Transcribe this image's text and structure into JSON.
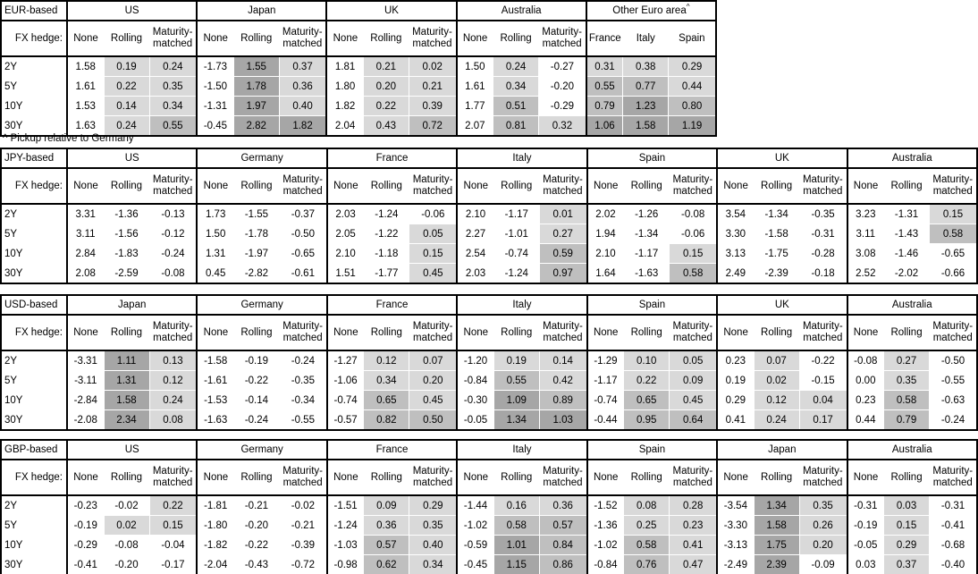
{
  "colors": {
    "background": "#ffffff",
    "border": "#000000",
    "cell_light": "#d9d9d9",
    "cell_medium": "#bfbfbf",
    "cell_dark": "#a6a6a6"
  },
  "heatmap_rule": {
    "negative_values": "white",
    "bins": [
      {
        "min": 0.0,
        "max": 0.5,
        "color": "cell_light"
      },
      {
        "min": 0.5,
        "max": 1.0,
        "color": "cell_medium"
      },
      {
        "min": 1.0,
        "max": 99,
        "color": "cell_dark"
      }
    ]
  },
  "labels": {
    "fx_hedge": "FX hedge:",
    "tenors": [
      "2Y",
      "5Y",
      "10Y",
      "30Y"
    ],
    "footnote": "^ Pickup relative to Germany"
  },
  "tables": [
    {
      "id": "eur",
      "base_label": "EUR-based",
      "blocks": [
        {
          "country": "US",
          "columns": [
            "None",
            "Rolling",
            "Maturity-matched"
          ],
          "shaded_cols": [
            false,
            true,
            true
          ],
          "rows": [
            [
              "1.58",
              "0.19",
              "0.24"
            ],
            [
              "1.61",
              "0.22",
              "0.35"
            ],
            [
              "1.53",
              "0.14",
              "0.34"
            ],
            [
              "1.63",
              "0.24",
              "0.55"
            ]
          ]
        },
        {
          "country": "Japan",
          "columns": [
            "None",
            "Rolling",
            "Maturity-matched"
          ],
          "shaded_cols": [
            false,
            true,
            true
          ],
          "rows": [
            [
              "-1.73",
              "1.55",
              "0.37"
            ],
            [
              "-1.50",
              "1.78",
              "0.36"
            ],
            [
              "-1.31",
              "1.97",
              "0.40"
            ],
            [
              "-0.45",
              "2.82",
              "1.82"
            ]
          ]
        },
        {
          "country": "UK",
          "columns": [
            "None",
            "Rolling",
            "Maturity-matched"
          ],
          "shaded_cols": [
            false,
            true,
            true
          ],
          "rows": [
            [
              "1.81",
              "0.21",
              "0.02"
            ],
            [
              "1.80",
              "0.20",
              "0.21"
            ],
            [
              "1.82",
              "0.22",
              "0.39"
            ],
            [
              "2.04",
              "0.43",
              "0.72"
            ]
          ]
        },
        {
          "country": "Australia",
          "columns": [
            "None",
            "Rolling",
            "Maturity-matched"
          ],
          "shaded_cols": [
            false,
            true,
            true
          ],
          "rows": [
            [
              "1.50",
              "0.24",
              "-0.27"
            ],
            [
              "1.61",
              "0.34",
              "-0.20"
            ],
            [
              "1.77",
              "0.51",
              "-0.29"
            ],
            [
              "2.07",
              "0.81",
              "0.32"
            ]
          ]
        },
        {
          "country": "Other Euro area",
          "superscript": "^",
          "columns": [
            "France",
            "Italy",
            "Spain"
          ],
          "shaded_cols": [
            true,
            true,
            true
          ],
          "rows": [
            [
              "0.31",
              "0.38",
              "0.29"
            ],
            [
              "0.55",
              "0.77",
              "0.44"
            ],
            [
              "0.79",
              "1.23",
              "0.80"
            ],
            [
              "1.06",
              "1.58",
              "1.19"
            ]
          ]
        }
      ]
    },
    {
      "id": "jpy",
      "base_label": "JPY-based",
      "blocks": [
        {
          "country": "US",
          "columns": [
            "None",
            "Rolling",
            "Maturity-matched"
          ],
          "shaded_cols": [
            false,
            true,
            true
          ],
          "rows": [
            [
              "3.31",
              "-1.36",
              "-0.13"
            ],
            [
              "3.11",
              "-1.56",
              "-0.12"
            ],
            [
              "2.84",
              "-1.83",
              "-0.24"
            ],
            [
              "2.08",
              "-2.59",
              "-0.08"
            ]
          ]
        },
        {
          "country": "Germany",
          "columns": [
            "None",
            "Rolling",
            "Maturity-matched"
          ],
          "shaded_cols": [
            false,
            true,
            true
          ],
          "rows": [
            [
              "1.73",
              "-1.55",
              "-0.37"
            ],
            [
              "1.50",
              "-1.78",
              "-0.50"
            ],
            [
              "1.31",
              "-1.97",
              "-0.65"
            ],
            [
              "0.45",
              "-2.82",
              "-0.61"
            ]
          ]
        },
        {
          "country": "France",
          "columns": [
            "None",
            "Rolling",
            "Maturity-matched"
          ],
          "shaded_cols": [
            false,
            true,
            true
          ],
          "rows": [
            [
              "2.03",
              "-1.24",
              "-0.06"
            ],
            [
              "2.05",
              "-1.22",
              "0.05"
            ],
            [
              "2.10",
              "-1.18",
              "0.15"
            ],
            [
              "1.51",
              "-1.77",
              "0.45"
            ]
          ]
        },
        {
          "country": "Italy",
          "columns": [
            "None",
            "Rolling",
            "Maturity-matched"
          ],
          "shaded_cols": [
            false,
            true,
            true
          ],
          "rows": [
            [
              "2.10",
              "-1.17",
              "0.01"
            ],
            [
              "2.27",
              "-1.01",
              "0.27"
            ],
            [
              "2.54",
              "-0.74",
              "0.59"
            ],
            [
              "2.03",
              "-1.24",
              "0.97"
            ]
          ]
        },
        {
          "country": "Spain",
          "columns": [
            "None",
            "Rolling",
            "Maturity-matched"
          ],
          "shaded_cols": [
            false,
            true,
            true
          ],
          "rows": [
            [
              "2.02",
              "-1.26",
              "-0.08"
            ],
            [
              "1.94",
              "-1.34",
              "-0.06"
            ],
            [
              "2.10",
              "-1.17",
              "0.15"
            ],
            [
              "1.64",
              "-1.63",
              "0.58"
            ]
          ]
        },
        {
          "country": "UK",
          "columns": [
            "None",
            "Rolling",
            "Maturity-matched"
          ],
          "shaded_cols": [
            false,
            true,
            true
          ],
          "rows": [
            [
              "3.54",
              "-1.34",
              "-0.35"
            ],
            [
              "3.30",
              "-1.58",
              "-0.31"
            ],
            [
              "3.13",
              "-1.75",
              "-0.28"
            ],
            [
              "2.49",
              "-2.39",
              "-0.18"
            ]
          ]
        },
        {
          "country": "Australia",
          "columns": [
            "None",
            "Rolling",
            "Maturity-matched"
          ],
          "shaded_cols": [
            false,
            true,
            true
          ],
          "rows": [
            [
              "3.23",
              "-1.31",
              "0.15"
            ],
            [
              "3.11",
              "-1.43",
              "0.58"
            ],
            [
              "3.08",
              "-1.46",
              "-0.65"
            ],
            [
              "2.52",
              "-2.02",
              "-0.66"
            ]
          ]
        }
      ]
    },
    {
      "id": "usd",
      "base_label": "USD-based",
      "blocks": [
        {
          "country": "Japan",
          "columns": [
            "None",
            "Rolling",
            "Maturity-matched"
          ],
          "shaded_cols": [
            false,
            true,
            true
          ],
          "rows": [
            [
              "-3.31",
              "1.11",
              "0.13"
            ],
            [
              "-3.11",
              "1.31",
              "0.12"
            ],
            [
              "-2.84",
              "1.58",
              "0.24"
            ],
            [
              "-2.08",
              "2.34",
              "0.08"
            ]
          ]
        },
        {
          "country": "Germany",
          "columns": [
            "None",
            "Rolling",
            "Maturity-matched"
          ],
          "shaded_cols": [
            false,
            true,
            true
          ],
          "rows": [
            [
              "-1.58",
              "-0.19",
              "-0.24"
            ],
            [
              "-1.61",
              "-0.22",
              "-0.35"
            ],
            [
              "-1.53",
              "-0.14",
              "-0.34"
            ],
            [
              "-1.63",
              "-0.24",
              "-0.55"
            ]
          ]
        },
        {
          "country": "France",
          "columns": [
            "None",
            "Rolling",
            "Maturity-matched"
          ],
          "shaded_cols": [
            false,
            true,
            true
          ],
          "rows": [
            [
              "-1.27",
              "0.12",
              "0.07"
            ],
            [
              "-1.06",
              "0.34",
              "0.20"
            ],
            [
              "-0.74",
              "0.65",
              "0.45"
            ],
            [
              "-0.57",
              "0.82",
              "0.50"
            ]
          ]
        },
        {
          "country": "Italy",
          "columns": [
            "None",
            "Rolling",
            "Maturity-matched"
          ],
          "shaded_cols": [
            false,
            true,
            true
          ],
          "rows": [
            [
              "-1.20",
              "0.19",
              "0.14"
            ],
            [
              "-0.84",
              "0.55",
              "0.42"
            ],
            [
              "-0.30",
              "1.09",
              "0.89"
            ],
            [
              "-0.05",
              "1.34",
              "1.03"
            ]
          ]
        },
        {
          "country": "Spain",
          "columns": [
            "None",
            "Rolling",
            "Maturity-matched"
          ],
          "shaded_cols": [
            false,
            true,
            true
          ],
          "rows": [
            [
              "-1.29",
              "0.10",
              "0.05"
            ],
            [
              "-1.17",
              "0.22",
              "0.09"
            ],
            [
              "-0.74",
              "0.65",
              "0.45"
            ],
            [
              "-0.44",
              "0.95",
              "0.64"
            ]
          ]
        },
        {
          "country": "UK",
          "columns": [
            "None",
            "Rolling",
            "Maturity-matched"
          ],
          "shaded_cols": [
            false,
            true,
            true
          ],
          "rows": [
            [
              "0.23",
              "0.07",
              "-0.22"
            ],
            [
              "0.19",
              "0.02",
              "-0.15"
            ],
            [
              "0.29",
              "0.12",
              "0.04"
            ],
            [
              "0.41",
              "0.24",
              "0.17"
            ]
          ]
        },
        {
          "country": "Australia",
          "columns": [
            "None",
            "Rolling",
            "Maturity-matched"
          ],
          "shaded_cols": [
            false,
            true,
            true
          ],
          "rows": [
            [
              "-0.08",
              "0.27",
              "-0.50"
            ],
            [
              "0.00",
              "0.35",
              "-0.55"
            ],
            [
              "0.23",
              "0.58",
              "-0.63"
            ],
            [
              "0.44",
              "0.79",
              "-0.24"
            ]
          ]
        }
      ]
    },
    {
      "id": "gbp",
      "base_label": "GBP-based",
      "blocks": [
        {
          "country": "US",
          "columns": [
            "None",
            "Rolling",
            "Maturity-matched"
          ],
          "shaded_cols": [
            false,
            true,
            true
          ],
          "rows": [
            [
              "-0.23",
              "-0.02",
              "0.22"
            ],
            [
              "-0.19",
              "0.02",
              "0.15"
            ],
            [
              "-0.29",
              "-0.08",
              "-0.04"
            ],
            [
              "-0.41",
              "-0.20",
              "-0.17"
            ]
          ]
        },
        {
          "country": "Germany",
          "columns": [
            "None",
            "Rolling",
            "Maturity-matched"
          ],
          "shaded_cols": [
            false,
            true,
            true
          ],
          "rows": [
            [
              "-1.81",
              "-0.21",
              "-0.02"
            ],
            [
              "-1.80",
              "-0.20",
              "-0.21"
            ],
            [
              "-1.82",
              "-0.22",
              "-0.39"
            ],
            [
              "-2.04",
              "-0.43",
              "-0.72"
            ]
          ]
        },
        {
          "country": "France",
          "columns": [
            "None",
            "Rolling",
            "Maturity-matched"
          ],
          "shaded_cols": [
            false,
            true,
            true
          ],
          "rows": [
            [
              "-1.51",
              "0.09",
              "0.29"
            ],
            [
              "-1.24",
              "0.36",
              "0.35"
            ],
            [
              "-1.03",
              "0.57",
              "0.40"
            ],
            [
              "-0.98",
              "0.62",
              "0.34"
            ]
          ]
        },
        {
          "country": "Italy",
          "columns": [
            "None",
            "Rolling",
            "Maturity-matched"
          ],
          "shaded_cols": [
            false,
            true,
            true
          ],
          "rows": [
            [
              "-1.44",
              "0.16",
              "0.36"
            ],
            [
              "-1.02",
              "0.58",
              "0.57"
            ],
            [
              "-0.59",
              "1.01",
              "0.84"
            ],
            [
              "-0.45",
              "1.15",
              "0.86"
            ]
          ]
        },
        {
          "country": "Spain",
          "columns": [
            "None",
            "Rolling",
            "Maturity-matched"
          ],
          "shaded_cols": [
            false,
            true,
            true
          ],
          "rows": [
            [
              "-1.52",
              "0.08",
              "0.28"
            ],
            [
              "-1.36",
              "0.25",
              "0.23"
            ],
            [
              "-1.02",
              "0.58",
              "0.41"
            ],
            [
              "-0.84",
              "0.76",
              "0.47"
            ]
          ]
        },
        {
          "country": "Japan",
          "columns": [
            "None",
            "Rolling",
            "Maturity-matched"
          ],
          "shaded_cols": [
            false,
            true,
            true
          ],
          "rows": [
            [
              "-3.54",
              "1.34",
              "0.35"
            ],
            [
              "-3.30",
              "1.58",
              "0.26"
            ],
            [
              "-3.13",
              "1.75",
              "0.20"
            ],
            [
              "-2.49",
              "2.39",
              "-0.09"
            ]
          ]
        },
        {
          "country": "Australia",
          "columns": [
            "None",
            "Rolling",
            "Maturity-matched"
          ],
          "shaded_cols": [
            false,
            true,
            true
          ],
          "rows": [
            [
              "-0.31",
              "0.03",
              "-0.31"
            ],
            [
              "-0.19",
              "0.15",
              "-0.41"
            ],
            [
              "-0.05",
              "0.29",
              "-0.68"
            ],
            [
              "0.03",
              "0.37",
              "-0.40"
            ]
          ]
        }
      ]
    }
  ]
}
